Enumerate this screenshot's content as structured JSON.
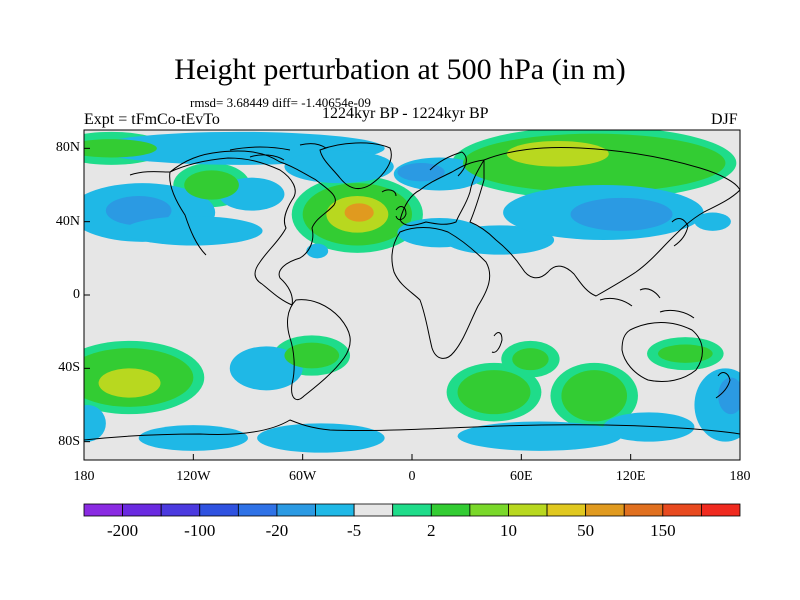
{
  "header": {
    "title": "Height perturbation at 500 hPa (in m)",
    "stats": "rmsd= 3.68449 diff= -1.40654e-09",
    "experiment": "Expt = tFmCo-tEvTo",
    "period": "1224kyr BP - 1224kyr BP",
    "season": "DJF"
  },
  "axes": {
    "y_ticks": [
      {
        "label": "80N",
        "lat": 80
      },
      {
        "label": "40N",
        "lat": 40
      },
      {
        "label": "0",
        "lat": 0
      },
      {
        "label": "40S",
        "lat": -40
      },
      {
        "label": "80S",
        "lat": -80
      }
    ],
    "x_ticks": [
      {
        "label": "180",
        "lon": -180
      },
      {
        "label": "120W",
        "lon": -120
      },
      {
        "label": "60W",
        "lon": -60
      },
      {
        "label": "0",
        "lon": 0
      },
      {
        "label": "60E",
        "lon": 60
      },
      {
        "label": "120E",
        "lon": 120
      },
      {
        "label": "180",
        "lon": 180
      }
    ],
    "lon_range": [
      -180,
      180
    ],
    "lat_range": [
      -90,
      90
    ]
  },
  "colorbar": {
    "colors": [
      "#8a2be2",
      "#6a2ae0",
      "#4b3adf",
      "#2f52e0",
      "#2f72e6",
      "#2b9ae3",
      "#1fb8e6",
      "#e6e6e6",
      "#1fdc8a",
      "#33cc33",
      "#7ad82a",
      "#b8d81f",
      "#e0c81f",
      "#e09a1f",
      "#e0701f",
      "#e84a1f",
      "#f02a1f"
    ],
    "labels": [
      {
        "text": "-200",
        "boundary": 1
      },
      {
        "text": "-100",
        "boundary": 3
      },
      {
        "text": "-20",
        "boundary": 5
      },
      {
        "text": "-5",
        "boundary": 7
      },
      {
        "text": "2",
        "boundary": 9
      },
      {
        "text": "10",
        "boundary": 11
      },
      {
        "text": "50",
        "boundary": 13
      },
      {
        "text": "150",
        "boundary": 15
      }
    ]
  },
  "colors": {
    "neutral": "#e6e6e6",
    "blue_light": "#1fb8e6",
    "blue_mid": "#2b9ae3",
    "green_light": "#1fdc8a",
    "green_mid": "#33cc33",
    "yellow_green": "#b8d81f",
    "yellow": "#e0c81f",
    "orange": "#e09a1f"
  },
  "map_fields": [
    {
      "name": "n-pacific-low",
      "lon": -148,
      "lat": 45,
      "rlon": 40,
      "rlat": 16,
      "level": 2
    },
    {
      "name": "n-pacific-low-core",
      "lon": -150,
      "lat": 46,
      "rlon": 18,
      "rlat": 8,
      "level": 1
    },
    {
      "name": "arctic-canada-low",
      "lon": -95,
      "lat": 80,
      "rlon": 80,
      "rlat": 9,
      "level": 2
    },
    {
      "name": "canada-low",
      "lon": -88,
      "lat": 55,
      "rlon": 18,
      "rlat": 9,
      "level": 2
    },
    {
      "name": "alaska-high",
      "lon": -110,
      "lat": 60,
      "rlon": 15,
      "rlat": 8,
      "level": 4
    },
    {
      "name": "n-america-south-low",
      "lon": -120,
      "lat": 35,
      "rlon": 38,
      "rlat": 8,
      "level": 2
    },
    {
      "name": "gulf-low",
      "lon": -52,
      "lat": 24,
      "rlon": 6,
      "rlat": 4,
      "level": 2
    },
    {
      "name": "atlantic-high",
      "lon": -30,
      "lat": 44,
      "rlon": 30,
      "rlat": 17,
      "level": 4
    },
    {
      "name": "atlantic-high-mid",
      "lon": -30,
      "lat": 44,
      "rlon": 17,
      "rlat": 10,
      "level": 5
    },
    {
      "name": "atlantic-high-core",
      "lon": -29,
      "lat": 45,
      "rlon": 8,
      "rlat": 5,
      "level": 6
    },
    {
      "name": "greenland-low",
      "lon": -40,
      "lat": 70,
      "rlon": 30,
      "rlat": 9,
      "level": 2
    },
    {
      "name": "europe-low",
      "lon": 15,
      "lat": 66,
      "rlon": 25,
      "rlat": 9,
      "level": 2
    },
    {
      "name": "europe-low-core",
      "lon": 5,
      "lat": 67,
      "rlon": 13,
      "rlat": 5,
      "level": 1
    },
    {
      "name": "n-africa-low",
      "lon": 15,
      "lat": 34,
      "rlon": 23,
      "rlat": 8,
      "level": 2
    },
    {
      "name": "mideast-low",
      "lon": 48,
      "lat": 30,
      "rlon": 30,
      "rlat": 8,
      "level": 2
    },
    {
      "name": "siberia-high",
      "lon": 100,
      "lat": 72,
      "rlon": 72,
      "rlat": 16,
      "level": 4
    },
    {
      "name": "siberia-high-core",
      "lon": 80,
      "lat": 77,
      "rlon": 28,
      "rlat": 7,
      "level": 5
    },
    {
      "name": "asia-low",
      "lon": 105,
      "lat": 45,
      "rlon": 55,
      "rlat": 15,
      "level": 2
    },
    {
      "name": "asia-low-core",
      "lon": 115,
      "lat": 44,
      "rlon": 28,
      "rlat": 9,
      "level": 1
    },
    {
      "name": "se-asia-low",
      "lon": 165,
      "lat": 40,
      "rlon": 10,
      "rlat": 5,
      "level": 2
    },
    {
      "name": "s-pacific-high",
      "lon": -155,
      "lat": -45,
      "rlon": 35,
      "rlat": 16,
      "level": 4
    },
    {
      "name": "s-pacific-high-core",
      "lon": -155,
      "lat": -48,
      "rlon": 17,
      "rlat": 8,
      "level": 5
    },
    {
      "name": "s-pacific-low-west",
      "lon": -178,
      "lat": -70,
      "rlon": 10,
      "rlat": 10,
      "level": 2
    },
    {
      "name": "s-america-low",
      "lon": -80,
      "lat": -40,
      "rlon": 20,
      "rlat": 12,
      "level": 2
    },
    {
      "name": "s-atlantic-low",
      "lon": -50,
      "lat": -78,
      "rlon": 35,
      "rlat": 8,
      "level": 2
    },
    {
      "name": "antarctic-low",
      "lon": -120,
      "lat": -78,
      "rlon": 30,
      "rlat": 7,
      "level": 2
    },
    {
      "name": "s-atlantic-high",
      "lon": 45,
      "lat": -53,
      "rlon": 20,
      "rlat": 12,
      "level": 4
    },
    {
      "name": "s-indian-low",
      "lon": 70,
      "lat": -77,
      "rlon": 45,
      "rlat": 8,
      "level": 2
    },
    {
      "name": "s-indian-high",
      "lon": 100,
      "lat": -55,
      "rlon": 18,
      "rlat": 14,
      "level": 4
    },
    {
      "name": "s-indian-low-2",
      "lon": 130,
      "lat": -72,
      "rlon": 25,
      "rlat": 8,
      "level": 2
    },
    {
      "name": "aus-low",
      "lon": 172,
      "lat": -60,
      "rlon": 17,
      "rlat": 20,
      "level": 2
    },
    {
      "name": "aus-low-core",
      "lon": 175,
      "lat": -55,
      "rlon": 7,
      "rlat": 10,
      "level": 1
    },
    {
      "name": "argentina-high",
      "lon": -55,
      "lat": -33,
      "rlon": 15,
      "rlat": 7,
      "level": 4
    },
    {
      "name": "madagascar-high",
      "lon": 65,
      "lat": -35,
      "rlon": 10,
      "rlat": 6,
      "level": 4
    },
    {
      "name": "s-africa-high",
      "lon": 150,
      "lat": -32,
      "rlon": 15,
      "rlat": 5,
      "level": 4
    },
    {
      "name": "arctic-ocean-high",
      "lon": -165,
      "lat": 80,
      "rlon": 25,
      "rlat": 5,
      "level": 4
    }
  ]
}
